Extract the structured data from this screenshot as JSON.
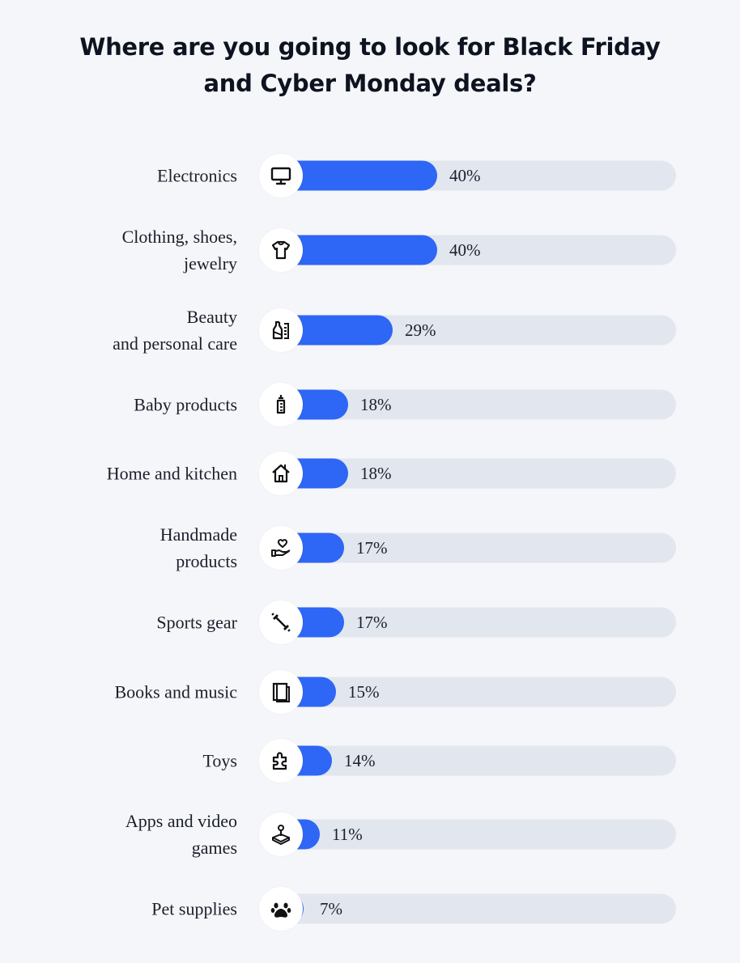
{
  "title_lines": [
    "Where are you going to look for Black Friday",
    "and Cyber Monday deals?"
  ],
  "colors": {
    "bar": "#2e66f5",
    "track": "#e2e6ee",
    "background": "#f5f6f9"
  },
  "chart_data": {
    "type": "bar",
    "orientation": "horizontal",
    "title": "Where are you going to look for Black Friday and Cyber Monday deals?",
    "xlim": [
      0,
      100
    ],
    "grid": false,
    "legend": "none",
    "categories": [
      "Electronics",
      "Clothing, shoes, jewelry",
      "Beauty and personal care",
      "Baby products",
      "Home and kitchen",
      "Handmade products",
      "Sports gear",
      "Books and music",
      "Toys",
      "Apps and video games",
      "Pet supplies"
    ],
    "values": [
      40,
      40,
      29,
      18,
      18,
      17,
      17,
      15,
      14,
      11,
      7
    ],
    "value_labels": [
      "40%",
      "40%",
      "29%",
      "18%",
      "18%",
      "17%",
      "17%",
      "15%",
      "14%",
      "11%",
      "7%"
    ],
    "label_lines": [
      [
        "Electronics"
      ],
      [
        "Clothing, shoes,",
        "jewelry"
      ],
      [
        "Beauty",
        "and personal care"
      ],
      [
        "Baby products"
      ],
      [
        "Home and kitchen"
      ],
      [
        "Handmade",
        "products"
      ],
      [
        "Sports gear"
      ],
      [
        "Books and music"
      ],
      [
        "Toys"
      ],
      [
        "Apps and video",
        "games"
      ],
      [
        "Pet supplies"
      ]
    ],
    "icons": [
      "monitor-icon",
      "tshirt-icon",
      "cosmetics-icon",
      "baby-bottle-icon",
      "house-icon",
      "hand-heart-icon",
      "dumbbell-icon",
      "book-icon",
      "puzzle-icon",
      "joystick-icon",
      "paw-icon"
    ]
  }
}
